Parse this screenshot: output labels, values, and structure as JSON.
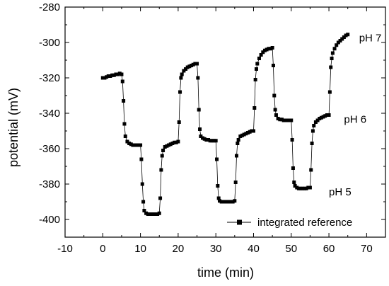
{
  "chart_data": {
    "type": "line",
    "xlabel": "time (min)",
    "ylabel": "potential (mV)",
    "xlim": [
      -10,
      75
    ],
    "ylim": [
      -410,
      -280
    ],
    "xticks": [
      -10,
      0,
      10,
      20,
      30,
      40,
      50,
      60,
      70
    ],
    "yticks": [
      -400,
      -380,
      -360,
      -340,
      -320,
      -300,
      -280
    ],
    "grid": false,
    "legend": {
      "position": "bottom-right",
      "entries": [
        "integrated reference"
      ]
    },
    "annotations": [
      {
        "text": "pH 7",
        "x": 68,
        "y": -297
      },
      {
        "text": "pH 6",
        "x": 64,
        "y": -343
      },
      {
        "text": "pH 5",
        "x": 60,
        "y": -384
      }
    ],
    "series": [
      {
        "name": "integrated reference",
        "marker": "square",
        "color": "#000000",
        "x": [
          0,
          0.5,
          1,
          1.5,
          2,
          2.5,
          3,
          3.5,
          4,
          4.5,
          5,
          5.25,
          5.5,
          5.75,
          6,
          6.5,
          7,
          7.5,
          8,
          8.5,
          9,
          9.5,
          10,
          10.25,
          10.5,
          10.75,
          11,
          11.5,
          12,
          12.5,
          13,
          13.5,
          14,
          14.5,
          15,
          15.25,
          15.5,
          15.75,
          16,
          16.5,
          17,
          17.5,
          18,
          18.5,
          19,
          19.5,
          20,
          20.25,
          20.5,
          20.75,
          21,
          21.5,
          22,
          22.5,
          23,
          23.5,
          24,
          24.5,
          25,
          25.25,
          25.5,
          25.75,
          26,
          26.5,
          27,
          27.5,
          28,
          28.5,
          29,
          29.5,
          30,
          30.25,
          30.5,
          30.75,
          31,
          31.5,
          32,
          32.5,
          33,
          33.5,
          34,
          34.5,
          35,
          35.25,
          35.5,
          35.75,
          36,
          36.5,
          37,
          37.5,
          38,
          38.5,
          39,
          39.5,
          40,
          40.25,
          40.5,
          40.75,
          41,
          41.5,
          42,
          42.5,
          43,
          43.5,
          44,
          44.5,
          45,
          45.25,
          45.5,
          45.75,
          46,
          46.5,
          47,
          47.5,
          48,
          48.5,
          49,
          49.5,
          50,
          50.25,
          50.5,
          50.75,
          51,
          51.5,
          52,
          52.5,
          53,
          53.5,
          54,
          54.5,
          55,
          55.25,
          55.5,
          55.75,
          56,
          56.5,
          57,
          57.5,
          58,
          58.5,
          59,
          59.5,
          60,
          60.25,
          60.5,
          60.75,
          61,
          61.5,
          62,
          62.5,
          63,
          63.5,
          64,
          64.5,
          65
        ],
        "y": [
          -320,
          -320,
          -319.5,
          -319,
          -319,
          -318.5,
          -318.5,
          -318,
          -318,
          -317.5,
          -318,
          -322,
          -333,
          -346,
          -353,
          -356,
          -357,
          -357.5,
          -358,
          -358,
          -358,
          -358,
          -358,
          -366,
          -380,
          -390,
          -395,
          -396.5,
          -397,
          -397,
          -397,
          -397,
          -397,
          -397,
          -396.5,
          -388,
          -372,
          -364,
          -361,
          -359,
          -358.5,
          -358,
          -357.5,
          -357,
          -356.5,
          -356.5,
          -356,
          -345,
          -328,
          -320,
          -318,
          -316,
          -315,
          -314,
          -313.5,
          -313,
          -312.5,
          -312,
          -312,
          -320,
          -338,
          -349,
          -353,
          -354,
          -354.5,
          -355,
          -355,
          -355.5,
          -355.5,
          -355.5,
          -355.5,
          -366,
          -381,
          -388,
          -389.5,
          -390,
          -390,
          -390,
          -390,
          -390,
          -390,
          -390,
          -389.5,
          -379,
          -364,
          -357,
          -355,
          -353,
          -352.5,
          -352,
          -351.5,
          -351,
          -350.5,
          -350,
          -350,
          -337,
          -321,
          -315,
          -312,
          -309,
          -307,
          -305.5,
          -304.5,
          -304,
          -303.5,
          -303.5,
          -303,
          -313,
          -330,
          -338,
          -341,
          -343,
          -343.5,
          -343.5,
          -344,
          -344,
          -344,
          -344,
          -344,
          -355,
          -371,
          -379,
          -381,
          -382,
          -382.5,
          -382.5,
          -382.5,
          -382.5,
          -382.5,
          -382,
          -382,
          -372,
          -357,
          -350,
          -347,
          -345,
          -344,
          -343,
          -342.5,
          -342,
          -341.5,
          -341,
          -341,
          -328,
          -314,
          -309,
          -306,
          -303.5,
          -301.5,
          -300,
          -299,
          -298,
          -297,
          -296,
          -295.5
        ]
      }
    ]
  }
}
